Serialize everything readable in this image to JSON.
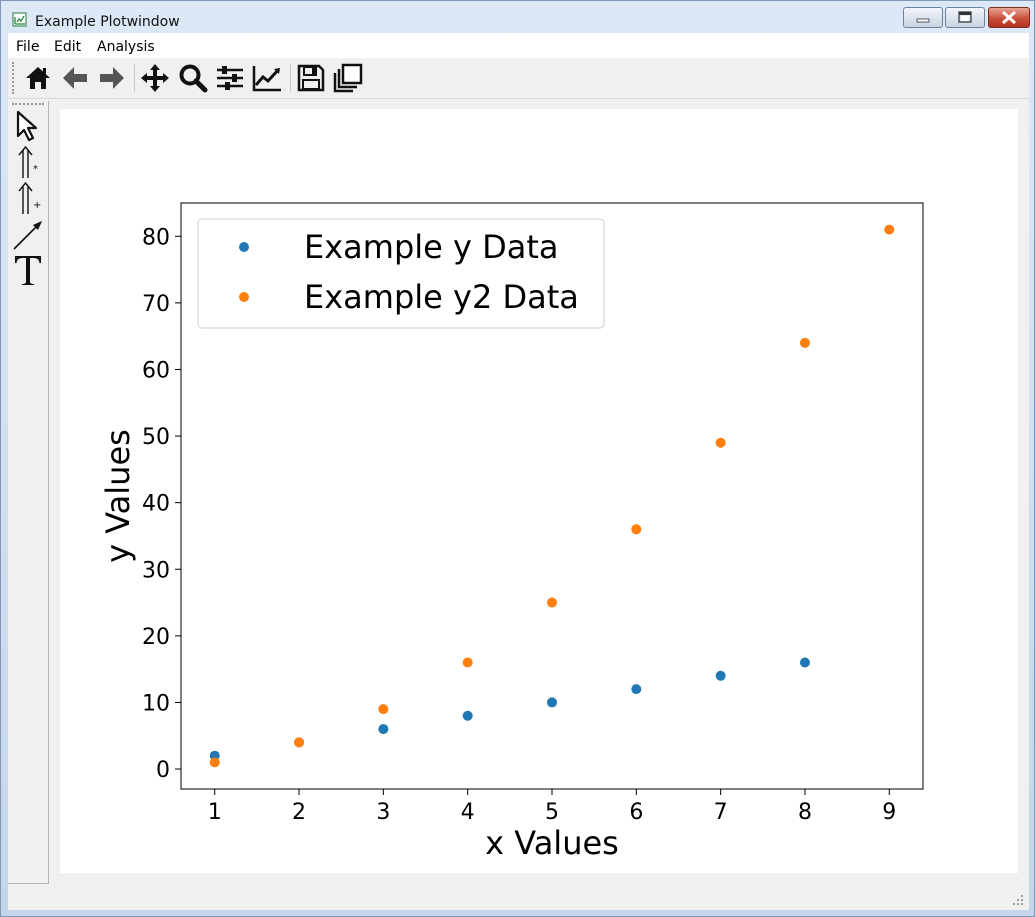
{
  "window": {
    "title": "Example Plotwindow"
  },
  "menu": {
    "items": [
      "File",
      "Edit",
      "Analysis"
    ]
  },
  "toolbar": {
    "buttons": [
      "home-icon",
      "back-icon",
      "forward-icon",
      "pan-icon",
      "zoom-icon",
      "configure-subplots-icon",
      "edit-axes-icon",
      "save-icon",
      "copy-icon"
    ]
  },
  "sidebar": {
    "tools": [
      "select-pointer-icon",
      "vertical-line-star-icon",
      "vertical-line-plus-icon",
      "arrow-annotation-icon",
      "text-tool-icon"
    ]
  },
  "chart_data": {
    "type": "scatter",
    "title": "",
    "xlabel": "x Values",
    "ylabel": "y Values",
    "xlim": [
      0.6,
      9.4
    ],
    "ylim": [
      -3,
      85
    ],
    "xticks": [
      1,
      2,
      3,
      4,
      5,
      6,
      7,
      8,
      9
    ],
    "yticks": [
      0,
      10,
      20,
      30,
      40,
      50,
      60,
      70,
      80
    ],
    "grid": false,
    "legend": "top-left",
    "series": [
      {
        "name": "Example y Data",
        "color": "#1f77b4",
        "x": [
          1,
          2,
          3,
          4,
          5,
          6,
          7,
          8
        ],
        "y": [
          2,
          4,
          6,
          8,
          10,
          12,
          14,
          16
        ]
      },
      {
        "name": "Example y2 Data",
        "color": "#ff7f0e",
        "x": [
          1,
          2,
          3,
          4,
          5,
          6,
          7,
          8,
          9
        ],
        "y": [
          1,
          4,
          9,
          16,
          25,
          36,
          49,
          64,
          81
        ]
      }
    ]
  }
}
